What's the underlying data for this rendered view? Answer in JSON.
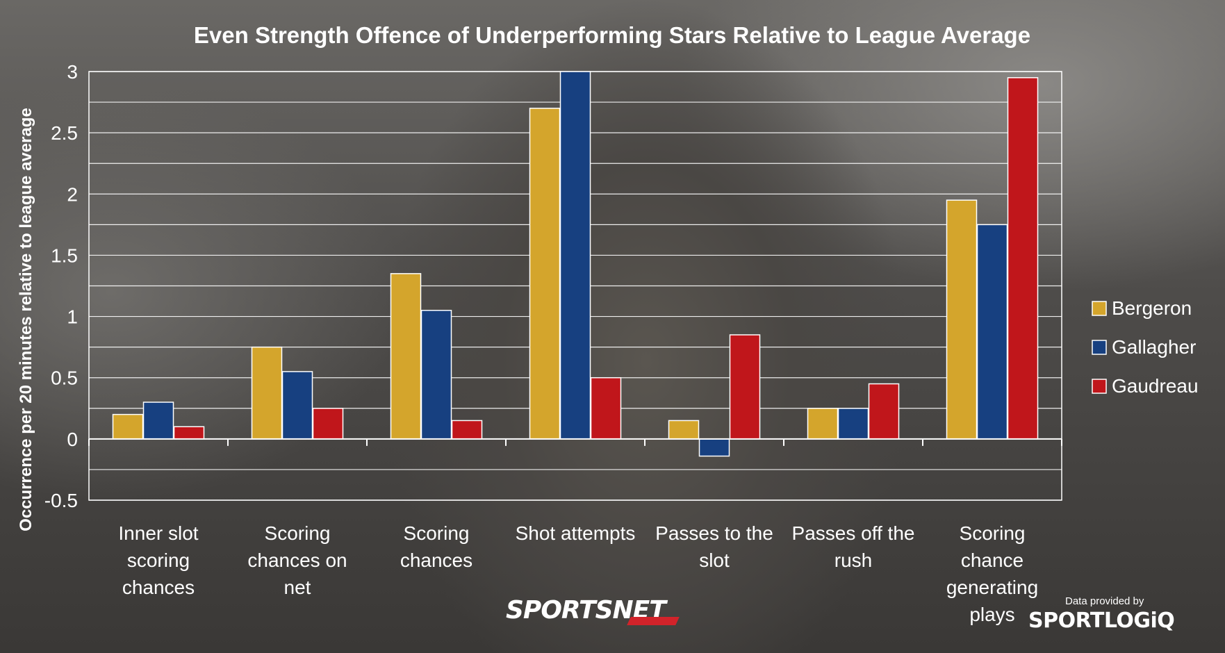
{
  "chart_data": {
    "type": "bar",
    "title": "Even Strength Offence of Underperforming Stars Relative to League Average",
    "ylabel": "Occurrence per 20 minutes relative to league average",
    "xlabel": "",
    "ylim": [
      -0.5,
      3
    ],
    "yticks": [
      "3",
      "2.5",
      "2",
      "1.5",
      "1",
      "0.5",
      "0",
      "-0.5"
    ],
    "grid": true,
    "legend_position": "right",
    "categories": [
      [
        "Inner slot",
        "scoring",
        "chances"
      ],
      [
        "Scoring",
        "chances on",
        "net"
      ],
      [
        "Scoring",
        "chances"
      ],
      [
        "Shot attempts"
      ],
      [
        "Passes to the",
        "slot"
      ],
      [
        "Passes off the",
        "rush"
      ],
      [
        "Scoring",
        "chance",
        "generating",
        "plays"
      ]
    ],
    "series": [
      {
        "name": "Bergeron",
        "color": "#d4a52c",
        "values": [
          0.2,
          0.75,
          1.35,
          2.7,
          0.15,
          0.25,
          1.95
        ]
      },
      {
        "name": "Gallagher",
        "color": "#174080",
        "values": [
          0.3,
          0.55,
          1.05,
          3.0,
          -0.14,
          0.25,
          1.75
        ]
      },
      {
        "name": "Gaudreau",
        "color": "#c0161b",
        "values": [
          0.1,
          0.25,
          0.15,
          0.5,
          0.85,
          0.45,
          2.95
        ]
      }
    ]
  },
  "branding": {
    "network": "SPORTSNET",
    "data_credit": "Data provided by",
    "data_provider": "SPORTLOGiQ"
  }
}
